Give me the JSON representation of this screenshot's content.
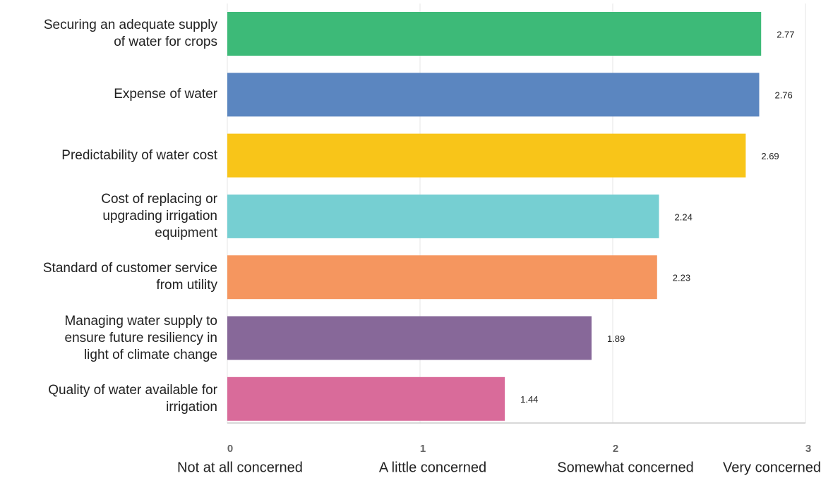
{
  "chart_data": {
    "type": "bar",
    "orientation": "horizontal",
    "categories": [
      "Securing an adequate supply\nof water for crops",
      "Expense of water",
      "Predictability of water cost",
      "Cost of replacing or\nupgrading irrigation\nequipment",
      "Standard of customer service\nfrom utility",
      "Managing water supply to\nensure future resiliency in\nlight of climate change",
      "Quality of water available for\nirrigation"
    ],
    "values": [
      2.77,
      2.76,
      2.69,
      2.24,
      2.23,
      1.89,
      1.44
    ],
    "colors": [
      "#3dba78",
      "#5b86c0",
      "#f8c519",
      "#76cfd2",
      "#f5965f",
      "#876899",
      "#d96b9a"
    ],
    "xlim": [
      0,
      3
    ],
    "xticks": [
      0,
      1,
      2,
      3
    ],
    "xtick_descriptions": [
      "Not at all concerned",
      "A little concerned",
      "Somewhat concerned",
      "Very concerned"
    ],
    "grid": true
  }
}
